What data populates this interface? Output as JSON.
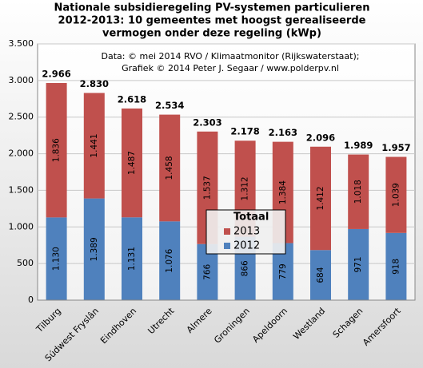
{
  "chart_data": {
    "type": "stacked_bar",
    "title": [
      "Nationale subsidieregeling PV-systemen particulieren",
      "2012-2013: 10 gemeentes met hoogst gerealiseerde",
      "vermogen  onder deze regeling (kWp)"
    ],
    "annotation": [
      "Data: © mei 2014 RVO / Klimaatmonitor (Rijkswaterstaat);",
      "Grafiek © 2014 Peter J. Segaar / www.polderpv.nl"
    ],
    "categories": [
      "Tilburg",
      "Súdwest Fryslân",
      "Eindhoven",
      "Utrecht",
      "Almere",
      "Groningen",
      "Apeldoorn",
      "Westland",
      "Schagen",
      "Amersfoort"
    ],
    "series": [
      {
        "name": "2012",
        "color": "#4f81bd",
        "values": [
          1130,
          1389,
          1131,
          1076,
          766,
          866,
          779,
          684,
          971,
          918
        ],
        "value_labels": [
          "1.130",
          "1.389",
          "1.131",
          "1.076",
          "766",
          "866",
          "779",
          "684",
          "971",
          "918"
        ]
      },
      {
        "name": "2013",
        "color": "#c0504d",
        "values": [
          1836,
          1441,
          1487,
          1458,
          1537,
          1312,
          1384,
          1412,
          1018,
          1039
        ],
        "value_labels": [
          "1.836",
          "1.441",
          "1.487",
          "1.458",
          "1.537",
          "1.312",
          "1.384",
          "1.412",
          "1.018",
          "1.039"
        ]
      }
    ],
    "totals": {
      "values": [
        2966,
        2830,
        2618,
        2534,
        2303,
        2178,
        2163,
        2096,
        1989,
        1957
      ],
      "value_labels": [
        "2.966",
        "2.830",
        "2.618",
        "2.534",
        "2.303",
        "2.178",
        "2.163",
        "2.096",
        "1.989",
        "1.957"
      ]
    },
    "legend_title": "Totaal",
    "ylim": [
      0,
      3500
    ],
    "yticks": [
      0,
      500,
      {
        "value": 1000,
        "label": "1.000"
      },
      {
        "value": 1500,
        "label": "1.500"
      },
      {
        "value": 2000,
        "label": "2.000"
      },
      {
        "value": 2500,
        "label": "2.500"
      },
      {
        "value": 3000,
        "label": "3.000"
      },
      {
        "value": 3500,
        "label": "3.500"
      }
    ],
    "grid": true
  }
}
